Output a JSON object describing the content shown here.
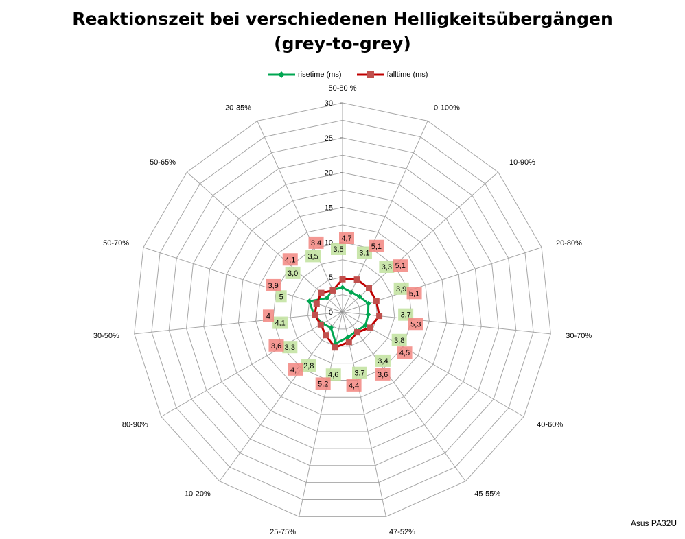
{
  "chart_data": {
    "type": "radar",
    "title_line1": "Reaktionszeit bei verschiedenen Helligkeitsübergängen",
    "title_line2": "(grey-to-grey)",
    "categories": [
      "50-80 %",
      "0-100%",
      "10-90%",
      "20-80%",
      "30-70%",
      "40-60%",
      "45-55%",
      "47-52%",
      "25-75%",
      "10-20%",
      "80-90%",
      "30-50%",
      "50-70%",
      "50-65%",
      "20-35%"
    ],
    "radial_ticks": [
      0,
      5,
      10,
      15,
      20,
      25,
      30
    ],
    "rlim": [
      0,
      30
    ],
    "grid": true,
    "legend_position": "top",
    "series": [
      {
        "name": "risetime (ms)",
        "color": "#00a651",
        "label_bg": "#c4e3a3",
        "values": [
          3.5,
          3.1,
          3.3,
          3.9,
          3.7,
          3.8,
          3.4,
          3.7,
          4.6,
          2.8,
          3.3,
          4.1,
          5,
          3.0,
          3.5
        ],
        "labels": [
          "3,5",
          "3,1",
          "3,3",
          "3,9",
          "3,7",
          "3,8",
          "3,4",
          "3,7",
          "4,6",
          "2,8",
          "3,3",
          "4,1",
          "5",
          "3,0",
          "3,5"
        ]
      },
      {
        "name": "falltime (ms)",
        "color": "#c00000",
        "label_bg": "#f28680",
        "values": [
          4.7,
          5.1,
          5.1,
          5.1,
          5.3,
          4.5,
          3.6,
          4.4,
          5.2,
          4.1,
          3.6,
          4,
          3.9,
          4.1,
          3.4
        ],
        "labels": [
          "4,7",
          "5,1",
          "5,1",
          "5,1",
          "5,3",
          "4,5",
          "3,6",
          "4,4",
          "5,2",
          "4,1",
          "3,6",
          "4",
          "3,9",
          "4,1",
          "3,4"
        ]
      }
    ]
  },
  "watermark": "Asus PA32U"
}
